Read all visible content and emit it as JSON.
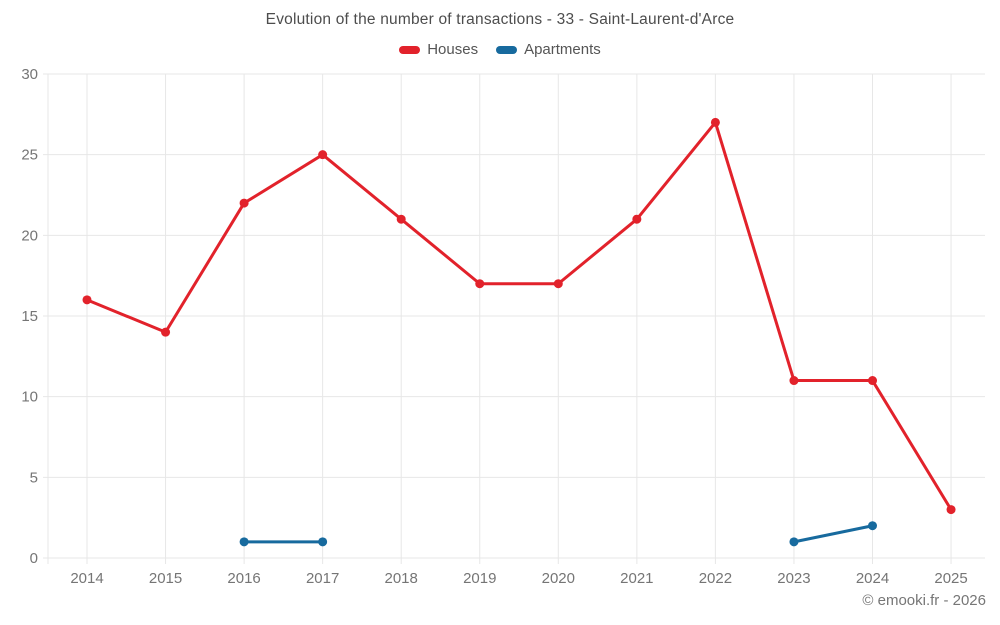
{
  "title": "Evolution of the number of transactions - 33 - Saint-Laurent-d'Arce",
  "footer": "© emooki.fr - 2026",
  "legend": [
    {
      "label": "Houses",
      "color": "#e2222b"
    },
    {
      "label": "Apartments",
      "color": "#176a9e"
    }
  ],
  "colors": {
    "grid": "#e7e7e7",
    "tick_label": "#757575",
    "title_text": "#4d4d4d",
    "footer_text": "#767676"
  },
  "chart_data": {
    "type": "line",
    "title": "Evolution of the number of transactions - 33 - Saint-Laurent-d'Arce",
    "x": [
      2014,
      2015,
      2016,
      2017,
      2018,
      2019,
      2020,
      2021,
      2022,
      2023,
      2024,
      2025
    ],
    "series": [
      {
        "name": "Houses",
        "color": "#e2222b",
        "values": [
          16,
          14,
          22,
          25,
          21,
          17,
          17,
          21,
          27,
          11,
          11,
          3
        ]
      },
      {
        "name": "Apartments",
        "color": "#176a9e",
        "values": [
          null,
          null,
          1,
          1,
          null,
          null,
          null,
          null,
          null,
          1,
          2,
          null
        ]
      }
    ],
    "xlabel": "",
    "ylabel": "",
    "ylim": [
      0,
      30
    ],
    "ytick_step": 5,
    "yticks": [
      0,
      5,
      10,
      15,
      20,
      25,
      30
    ],
    "grid": true,
    "legend_position": "top"
  }
}
